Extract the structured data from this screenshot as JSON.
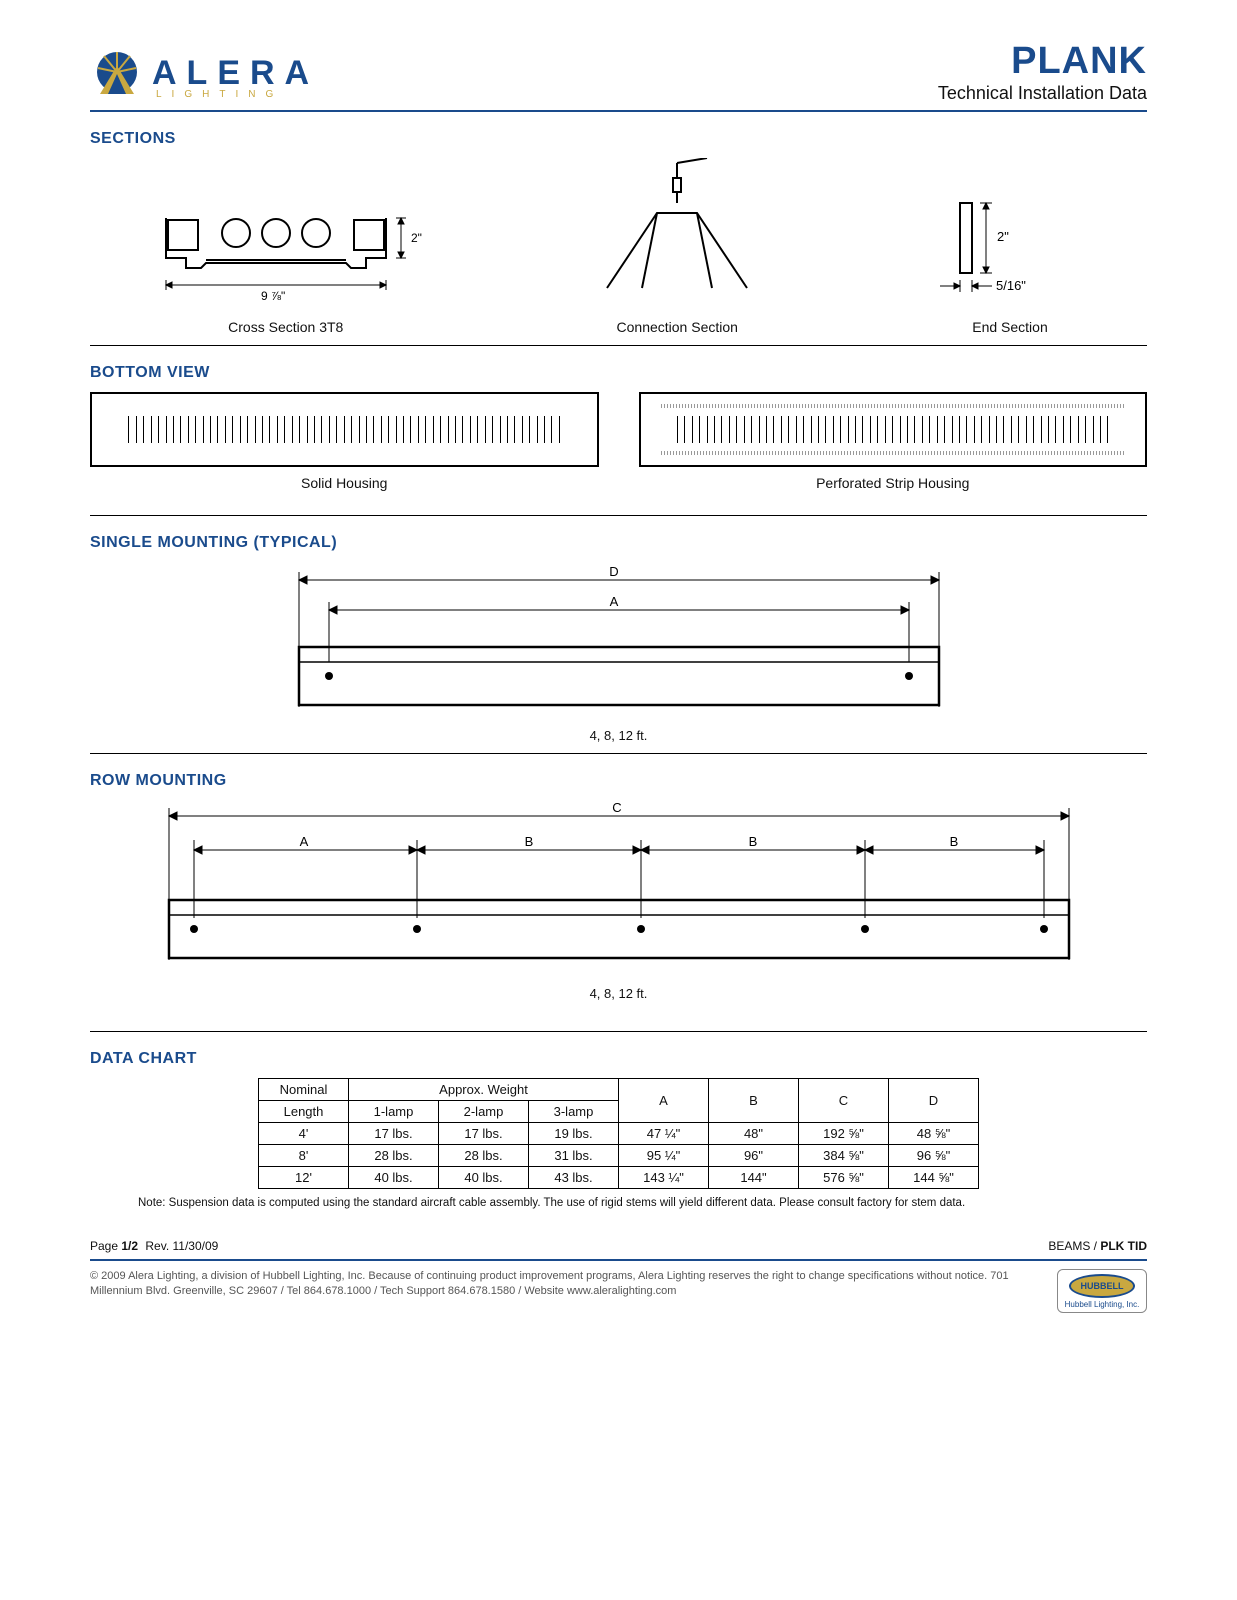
{
  "brand": {
    "name": "ALERA",
    "tagline": "LIGHTING",
    "logo_colors": {
      "primary": "#1a4b8c",
      "accent": "#c9a840"
    }
  },
  "product": {
    "title": "PLANK",
    "subtitle": "Technical Installation Data"
  },
  "sections": {
    "heading": "SECTIONS",
    "items": [
      {
        "label": "Cross Section 3T8",
        "width_label": "9 ⅞\"",
        "height_label": "2\""
      },
      {
        "label": "Connection Section"
      },
      {
        "label": "End Section",
        "width_label": "5/16\"",
        "height_label": "2\""
      }
    ]
  },
  "bottom_view": {
    "heading": "BOTTOM VIEW",
    "items": [
      {
        "label": "Solid Housing",
        "slat_count": 60,
        "perforated": false
      },
      {
        "label": "Perforated Strip Housing",
        "slat_count": 60,
        "perforated": true
      }
    ]
  },
  "single_mounting": {
    "heading": "SINGLE MOUNTING (TYPICAL)",
    "dims": [
      "D",
      "A"
    ],
    "length_note": "4, 8, 12 ft."
  },
  "row_mounting": {
    "heading": "ROW MOUNTING",
    "top_dim": "C",
    "segment_dims": [
      "A",
      "B",
      "B",
      "B"
    ],
    "length_note": "4, 8, 12 ft."
  },
  "data_chart": {
    "heading": "DATA CHART",
    "header_row1": [
      "Nominal",
      "Approx. Weight",
      "A",
      "B",
      "C",
      "D"
    ],
    "header_row2": [
      "Length",
      "1-lamp",
      "2-lamp",
      "3-lamp"
    ],
    "rows": [
      [
        "4'",
        "17 lbs.",
        "17 lbs.",
        "19 lbs.",
        "47 ¼\"",
        "48\"",
        "192 ⅝\"",
        "48 ⅝\""
      ],
      [
        "8'",
        "28 lbs.",
        "28 lbs.",
        "31 lbs.",
        "95 ¼\"",
        "96\"",
        "384 ⅝\"",
        "96 ⅝\""
      ],
      [
        "12'",
        "40 lbs.",
        "40 lbs.",
        "43 lbs.",
        "143 ¼\"",
        "144\"",
        "576 ⅝\"",
        "144 ⅝\""
      ]
    ],
    "note": "Note: Suspension data is computed using the standard aircraft cable assembly. The use of rigid stems will yield different data. Please consult factory for stem data."
  },
  "footer": {
    "page": "Page 1/2",
    "rev": "Rev. 11/30/09",
    "right": "BEAMS / PLK TID",
    "copyright": "© 2009 Alera Lighting, a division of Hubbell Lighting, Inc. Because of continuing product improvement programs, Alera Lighting reserves the right to change specifications without notice. 701 Millennium Blvd. Greenville, SC 29607 / Tel 864.678.1000 / Tech Support 864.678.1580 / Website www.aleralighting.com",
    "parent_brand": "HUBBELL",
    "parent_sub": "Hubbell Lighting, Inc."
  },
  "colors": {
    "brand_blue": "#1a4b8c",
    "brand_gold": "#c9a840",
    "line": "#000000",
    "text": "#111111"
  }
}
